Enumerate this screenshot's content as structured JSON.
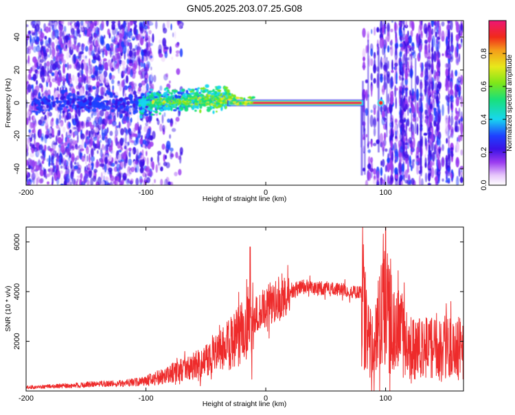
{
  "page_title": "GN05.2025.203.07.25.G08",
  "colors": {
    "frame": "#000000",
    "snr_line": "#ee2b2b",
    "colormap": [
      "#ffffff",
      "#e7c7fb",
      "#9a3bf0",
      "#3b12e6",
      "#1e40ff",
      "#18d6f0",
      "#19e07a",
      "#7ee619",
      "#e8e81b",
      "#f59c1a",
      "#f02a1a",
      "#ee1675"
    ]
  },
  "chart_data": [
    {
      "type": "heatmap",
      "title": "GN05.2025.203.07.25.G08",
      "xlabel": "Height of straight line (km)",
      "ylabel": "Frequency (Hz)",
      "xlim": [
        -200,
        165
      ],
      "ylim": [
        -50,
        50
      ],
      "x_ticks": [
        -200,
        -100,
        0,
        100
      ],
      "y_ticks": [
        -40,
        -20,
        0,
        20,
        40
      ],
      "colorbar": {
        "label": "Normalized spectral amplitude",
        "range": [
          0,
          1
        ],
        "ticks": [
          "0.0",
          "0.2",
          "0.4",
          "0.6",
          "0.8"
        ]
      },
      "features": [
        {
          "name": "dominant frequency band",
          "x_range": [
            -30,
            80
          ],
          "frequency": 0,
          "amplitude": 1.0
        },
        {
          "name": "scattered energy near zero",
          "x_range": [
            -105,
            -30
          ],
          "frequency": 0,
          "amplitude": 0.45
        },
        {
          "name": "noise region",
          "x_range": [
            -200,
            -95
          ],
          "amplitude": 0.2
        },
        {
          "name": "noise region",
          "x_range": [
            78,
            165
          ],
          "amplitude": 0.3
        }
      ]
    },
    {
      "type": "line",
      "xlabel": "Height of straight line (km)",
      "ylabel": "SNR (10 * v/v)",
      "xlim": [
        -200,
        165
      ],
      "ylim": [
        0,
        6600
      ],
      "x_ticks": [
        -200,
        -100,
        0,
        100
      ],
      "y_ticks": [
        2000,
        4000,
        6000
      ],
      "series": [
        {
          "x": [
            -200,
            -180,
            -160,
            -140,
            -120,
            -100,
            -90,
            -80,
            -70,
            -60,
            -50,
            -40,
            -30,
            -20,
            -15,
            -10,
            0,
            10,
            20,
            30,
            40,
            50,
            60,
            70,
            80,
            85,
            90,
            95,
            100,
            110,
            120,
            140,
            165
          ],
          "y": [
            150,
            180,
            230,
            280,
            300,
            400,
            550,
            700,
            850,
            1000,
            1200,
            1500,
            1900,
            2300,
            2700,
            3000,
            3400,
            3700,
            4000,
            4200,
            4200,
            4100,
            4100,
            4000,
            4000,
            2300,
            1700,
            2700,
            3500,
            2600,
            1700,
            1700,
            1700
          ]
        }
      ],
      "annotations": [
        {
          "x": -13,
          "y": 5800
        },
        {
          "x": 100,
          "y": 6600
        }
      ]
    }
  ]
}
